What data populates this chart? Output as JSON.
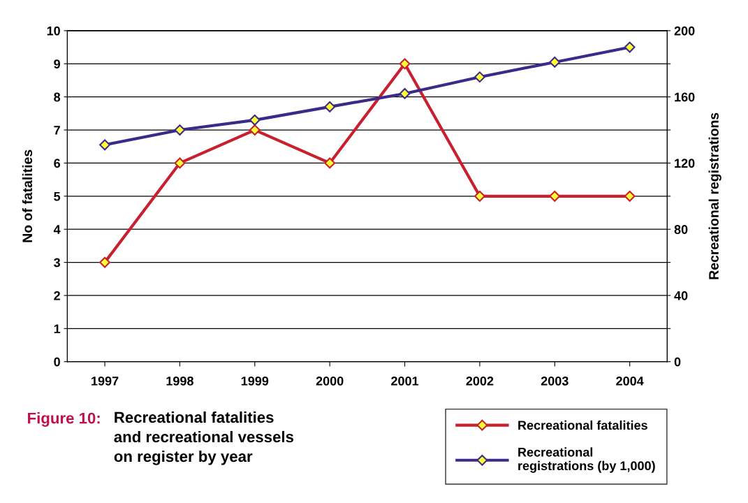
{
  "chart_data": {
    "type": "line",
    "title": "Recreational fatalities\nand recreational vessels\non register by year",
    "annotations": [
      "Figure 10:"
    ],
    "ylabel": "No of fatalities",
    "y2label": "Recreational registrations",
    "categories": [
      "1997",
      "1998",
      "1999",
      "2000",
      "2001",
      "2002",
      "2003",
      "2004"
    ],
    "series": [
      {
        "name": "Recreational fatalities",
        "color": "#c8202e",
        "values": [
          3,
          6,
          7,
          6,
          9,
          5,
          5,
          5
        ]
      },
      {
        "name": "Recreational\nregistrations (by 1,000)",
        "color": "#3b2a8a",
        "axis": "y2",
        "values": [
          131,
          140,
          146,
          154,
          162,
          172,
          181,
          190
        ]
      }
    ],
    "ylim": [
      0,
      10
    ],
    "yticks": [
      0,
      1,
      2,
      3,
      4,
      5,
      6,
      7,
      8,
      9,
      10
    ],
    "y2lim": [
      0,
      200
    ],
    "y2ticks": [
      0,
      {
        "value": 20,
        "label": null
      },
      40,
      {
        "value": 60,
        "label": null
      },
      80,
      {
        "value": 100,
        "label": null
      },
      120,
      {
        "value": 140,
        "label": null
      },
      160,
      {
        "value": 180,
        "label": null
      },
      200
    ],
    "grid": "y",
    "legend": "bottom right",
    "marker": "diamond",
    "line_style": "solid"
  }
}
